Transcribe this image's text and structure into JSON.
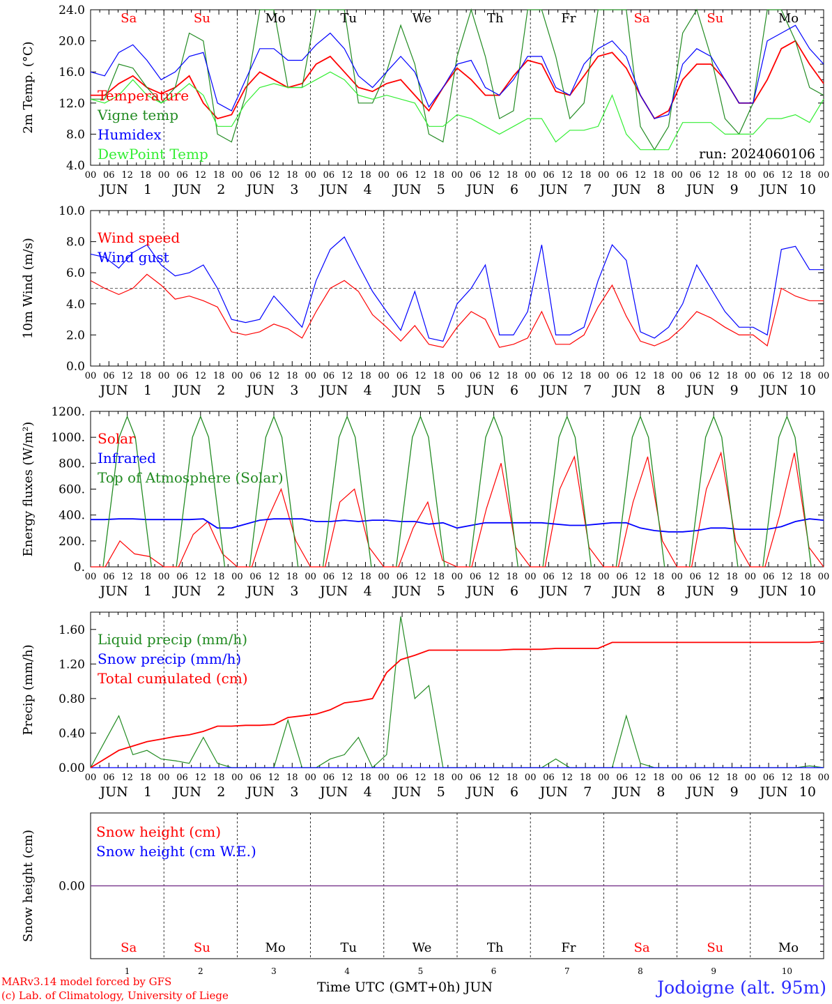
{
  "colors": {
    "red": "#ff0000",
    "green": "#228b22",
    "blue": "#0000ff",
    "lightgreen": "#33ee33",
    "purple": "#7b3b8f"
  },
  "axis": {
    "hours": [
      "00",
      "06",
      "12",
      "18"
    ],
    "days": [
      "1",
      "2",
      "3",
      "4",
      "5",
      "6",
      "7",
      "8",
      "9",
      "10"
    ],
    "month": "JUN",
    "end_hour": "00"
  },
  "weekdays": [
    {
      "label": "Sa",
      "color": "#ff0000"
    },
    {
      "label": "Su",
      "color": "#ff0000"
    },
    {
      "label": "Mo",
      "color": "#000000"
    },
    {
      "label": "Tu",
      "color": "#000000"
    },
    {
      "label": "We",
      "color": "#000000"
    },
    {
      "label": "Th",
      "color": "#000000"
    },
    {
      "label": "Fr",
      "color": "#000000"
    },
    {
      "label": "Sa",
      "color": "#ff0000"
    },
    {
      "label": "Su",
      "color": "#ff0000"
    },
    {
      "label": "Mo",
      "color": "#000000"
    }
  ],
  "footer": {
    "model": "MARv3.14 model forced by GFS",
    "lab": "(c) Lab. of Climatology, University of Liege",
    "time_label": "Time UTC (GMT+0h) JUN",
    "station": "Jodoigne (alt. 95m)"
  },
  "chart_data": [
    {
      "type": "line",
      "ylabel": "2m Temp. (°C)",
      "ylim": [
        4,
        24
      ],
      "ticks": [
        "4.0",
        "8.0",
        "12.0",
        "16.0",
        "20.0",
        "24.0"
      ],
      "tick_values": [
        4,
        8,
        12,
        16,
        20,
        24
      ],
      "annotation": "run: 2024060106",
      "legend": [
        "Temperature",
        "Vigne temp",
        "Humidex",
        "DewPoint Temp"
      ],
      "series": [
        {
          "name": "Temperature",
          "color": "#ff0000",
          "values": [
            13,
            13,
            14.5,
            15.5,
            14,
            13.2,
            14,
            15.5,
            12,
            10,
            10.5,
            14,
            16,
            15,
            14,
            14.5,
            17,
            18,
            16,
            14,
            13.5,
            14.5,
            15,
            13,
            11,
            14,
            16.5,
            15,
            13,
            13,
            15.5,
            17.5,
            17,
            13.5,
            13,
            15.5,
            18,
            18.5,
            16.5,
            13,
            10,
            11,
            15,
            17,
            17,
            15,
            12,
            12,
            15,
            19,
            20,
            17,
            14.5
          ]
        },
        {
          "name": "Vigne temp",
          "color": "#228b22",
          "values": [
            12.5,
            12.5,
            17,
            16.5,
            14,
            12,
            14,
            21,
            20,
            8,
            7,
            13,
            24,
            24,
            14,
            14,
            24,
            24,
            24,
            12,
            12,
            16,
            22,
            17,
            8,
            7,
            18,
            24,
            18,
            10,
            11,
            24,
            24,
            18,
            10,
            12,
            24,
            24,
            24,
            9,
            6,
            9,
            21,
            24,
            18,
            10,
            8,
            12,
            24,
            24,
            20,
            14,
            13
          ]
        },
        {
          "name": "Humidex",
          "color": "#0000ff",
          "values": [
            16,
            15.5,
            18.5,
            19.5,
            17.5,
            15,
            16,
            18,
            18.5,
            12,
            11,
            15,
            19,
            19,
            17.5,
            17.5,
            19.5,
            21,
            19,
            15.5,
            14,
            16,
            18,
            16,
            11.5,
            14,
            17,
            17.5,
            14,
            13,
            15,
            18,
            18,
            14,
            13,
            17,
            19,
            20,
            18,
            13,
            10,
            10.5,
            17,
            19,
            18,
            15,
            12,
            12,
            20,
            21,
            22,
            19,
            17
          ]
        },
        {
          "name": "DewPoint Temp",
          "color": "#33ee33",
          "values": [
            12.5,
            12,
            13,
            15,
            13,
            12,
            13,
            14.5,
            13,
            9,
            9,
            12,
            14,
            14.5,
            14,
            14,
            15,
            16,
            15,
            13,
            12.5,
            13,
            12.5,
            12,
            9,
            9,
            10.5,
            10,
            9,
            8,
            9,
            10,
            10,
            7,
            8.5,
            8.5,
            9,
            13,
            8,
            6,
            6,
            6,
            9.5,
            9.5,
            9.5,
            8,
            8,
            8,
            10,
            10,
            10.5,
            9.5,
            12.5
          ]
        }
      ]
    },
    {
      "type": "line",
      "ylabel": "10m Wind (m/s)",
      "ylim": [
        0,
        10
      ],
      "ticks": [
        "0.0",
        "2.0",
        "4.0",
        "6.0",
        "8.0",
        "10.0"
      ],
      "tick_values": [
        0,
        2,
        4,
        6,
        8,
        10
      ],
      "reference_line": 5,
      "legend": [
        "Wind speed",
        "Wind gust"
      ],
      "series": [
        {
          "name": "Wind speed",
          "color": "#ff0000",
          "values": [
            5.5,
            5,
            4.6,
            5,
            5.9,
            5.2,
            4.3,
            4.5,
            4.2,
            3.8,
            2.2,
            2,
            2.2,
            2.7,
            2.4,
            1.8,
            3.5,
            5,
            5.5,
            4.8,
            3.3,
            2.5,
            1.6,
            2.6,
            1.4,
            1.2,
            2.5,
            3.5,
            3,
            1.2,
            1.4,
            1.8,
            3.5,
            1.4,
            1.4,
            2,
            3.8,
            5.2,
            3.2,
            1.6,
            1.3,
            1.7,
            2.5,
            3.5,
            3.1,
            2.5,
            2,
            2,
            1.3,
            5,
            4.5,
            4.2,
            4.2
          ]
        },
        {
          "name": "Wind gust",
          "color": "#0000ff",
          "values": [
            7.2,
            7,
            6.3,
            7.3,
            7.8,
            6.5,
            5.8,
            6,
            6.5,
            5,
            3,
            2.8,
            3,
            4.5,
            3.5,
            2.5,
            5.5,
            7.5,
            8.3,
            6.5,
            4.8,
            3.5,
            2.3,
            4.8,
            1.8,
            1.6,
            4,
            5,
            6.5,
            2,
            2,
            3.5,
            7.8,
            2,
            2,
            2.5,
            5.5,
            7.8,
            6.8,
            2.2,
            1.8,
            2.5,
            4,
            6.5,
            5,
            3.5,
            2.5,
            2.5,
            2,
            7.5,
            7.7,
            6.2,
            6.2
          ]
        }
      ]
    },
    {
      "type": "line",
      "ylabel": "Energy fluxes (W/m²)",
      "ylim": [
        0,
        1200
      ],
      "ticks": [
        "0.",
        "200.",
        "400.",
        "600.",
        "800.",
        "1000.",
        "1200."
      ],
      "tick_values": [
        0,
        200,
        400,
        600,
        800,
        1000,
        1200
      ],
      "legend": [
        "Solar",
        "Infrared",
        "Top of Atmosphere (Solar)"
      ],
      "series": [
        {
          "name": "Solar",
          "color": "#ff0000",
          "values": [
            0,
            0,
            200,
            100,
            80,
            0,
            0,
            250,
            350,
            100,
            0,
            0,
            350,
            600,
            200,
            0,
            0,
            500,
            600,
            150,
            0,
            0,
            300,
            500,
            50,
            0,
            0,
            450,
            800,
            150,
            0,
            0,
            600,
            850,
            150,
            0,
            0,
            500,
            850,
            200,
            0,
            0,
            600,
            880,
            200,
            0,
            0,
            400,
            880,
            150,
            0
          ]
        },
        {
          "name": "Infrared",
          "color": "#0000ff",
          "values": [
            365,
            365,
            370,
            370,
            365,
            365,
            365,
            365,
            370,
            300,
            300,
            330,
            360,
            370,
            370,
            370,
            350,
            350,
            360,
            350,
            360,
            360,
            350,
            350,
            330,
            340,
            300,
            320,
            340,
            340,
            340,
            340,
            340,
            330,
            320,
            320,
            330,
            340,
            340,
            300,
            280,
            270,
            270,
            280,
            300,
            300,
            290,
            290,
            290,
            310,
            350,
            370,
            360
          ]
        },
        {
          "name": "Top of Atmosphere (Solar)",
          "color": "#228b22",
          "values": [
            0,
            500,
            1000,
            1160,
            1000,
            500,
            0
          ]
        }
      ]
    },
    {
      "type": "line",
      "ylabel": "Precip (mm/h)",
      "ylim": [
        0,
        1.8
      ],
      "ticks": [
        "0.00",
        "0.40",
        "0.80",
        "1.20",
        "1.60"
      ],
      "tick_values": [
        0,
        0.4,
        0.8,
        1.2,
        1.6
      ],
      "legend": [
        "Liquid precip (mm/h)",
        "Snow precip (mm/h)",
        "Total cumulated (cm)"
      ],
      "series": [
        {
          "name": "Liquid precip (mm/h)",
          "color": "#228b22",
          "values": [
            0,
            0.3,
            0.6,
            0.15,
            0.2,
            0.1,
            0.08,
            0.05,
            0.35,
            0.05,
            0,
            0,
            0,
            0,
            0.55,
            0,
            0,
            0.1,
            0.15,
            0.35,
            0,
            0.15,
            1.75,
            0.8,
            0.95,
            0,
            0,
            0,
            0,
            0,
            0,
            0,
            0,
            0.1,
            0,
            0,
            0,
            0,
            0.6,
            0.05,
            0,
            0,
            0,
            0,
            0,
            0,
            0,
            0,
            0,
            0,
            0,
            0.02,
            0
          ]
        },
        {
          "name": "Snow precip (mm/h)",
          "color": "#0000ff",
          "values": [
            0,
            0,
            0,
            0,
            0,
            0,
            0,
            0,
            0,
            0,
            0,
            0,
            0,
            0,
            0,
            0,
            0,
            0,
            0,
            0,
            0,
            0,
            0,
            0,
            0,
            0,
            0,
            0,
            0,
            0,
            0,
            0,
            0,
            0,
            0,
            0,
            0,
            0,
            0,
            0,
            0,
            0,
            0,
            0,
            0,
            0,
            0,
            0,
            0,
            0,
            0,
            0,
            0
          ]
        },
        {
          "name": "Total cumulated (cm)",
          "color": "#ff0000",
          "values": [
            0,
            0.1,
            0.2,
            0.25,
            0.3,
            0.33,
            0.36,
            0.38,
            0.42,
            0.48,
            0.48,
            0.49,
            0.49,
            0.5,
            0.58,
            0.6,
            0.62,
            0.67,
            0.75,
            0.77,
            0.8,
            1.1,
            1.25,
            1.3,
            1.36,
            1.36,
            1.36,
            1.36,
            1.36,
            1.36,
            1.37,
            1.37,
            1.37,
            1.38,
            1.38,
            1.38,
            1.38,
            1.45,
            1.45,
            1.45,
            1.45,
            1.45,
            1.45,
            1.45,
            1.45,
            1.45,
            1.45,
            1.45,
            1.45,
            1.45,
            1.45,
            1.45,
            1.46
          ]
        }
      ]
    },
    {
      "type": "line",
      "ylabel": "Snow height (cm)",
      "ylim": [
        -1,
        1
      ],
      "ticks": [
        "0.00"
      ],
      "tick_values": [
        0
      ],
      "legend": [
        "Snow height (cm)",
        "Snow height (cm W.E.)"
      ],
      "series": [
        {
          "name": "Snow height (cm)",
          "color": "#ff0000",
          "values": [
            0,
            0
          ]
        },
        {
          "name": "Snow height (cm W.E.)",
          "color": "#0000ff",
          "values": [
            0,
            0
          ]
        }
      ]
    }
  ]
}
